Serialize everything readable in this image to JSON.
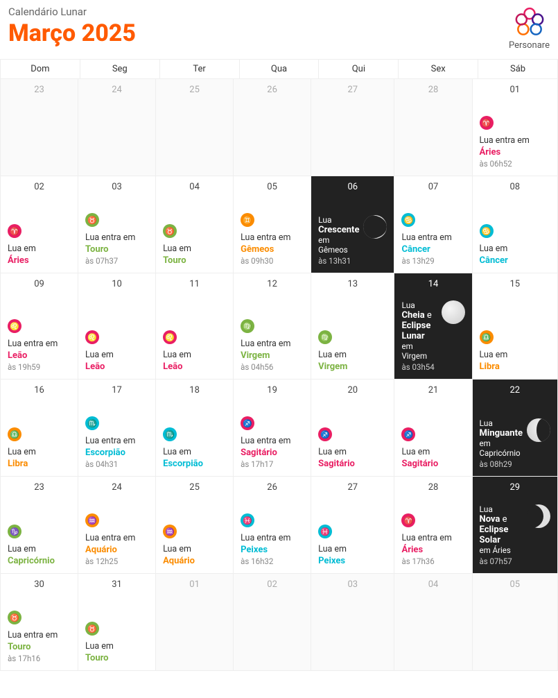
{
  "header": {
    "subtitle": "Calendário Lunar",
    "title": "Março 2025",
    "logo_text": "Personare"
  },
  "dow": [
    "Dom",
    "Seg",
    "Ter",
    "Qua",
    "Qui",
    "Sex",
    "Sáb"
  ],
  "colors": {
    "aries": "#e91e63",
    "touro": "#7cb342",
    "gemeos": "#fb8c00",
    "cancer": "#00bcd4",
    "leao": "#e91e63",
    "virgem": "#7cb342",
    "libra": "#fb8c00",
    "escorpiao": "#00bcd4",
    "sagitario": "#e91e63",
    "capricornio": "#7cb342",
    "aquario": "#fb8c00",
    "peixes": "#00bcd4",
    "accent": "#ff5a00"
  },
  "glyphs": {
    "aries": "♈",
    "touro": "♉",
    "gemeos": "♊",
    "cancer": "♋",
    "leao": "♌",
    "virgem": "♍",
    "libra": "♎",
    "escorpiao": "♏",
    "sagitario": "♐",
    "capricornio": "♑",
    "aquario": "♒",
    "peixes": "♓"
  },
  "cells": [
    {
      "day": "23",
      "muted": true
    },
    {
      "day": "24",
      "muted": true
    },
    {
      "day": "25",
      "muted": true
    },
    {
      "day": "26",
      "muted": true
    },
    {
      "day": "27",
      "muted": true
    },
    {
      "day": "28",
      "muted": true
    },
    {
      "day": "01",
      "sign_key": "aries",
      "line1": "Lua entra em",
      "sign": "Áries",
      "time": "às 06h52"
    },
    {
      "day": "02",
      "sign_key": "aries",
      "line1": "Lua em",
      "sign": "Áries"
    },
    {
      "day": "03",
      "sign_key": "touro",
      "line1": "Lua entra em",
      "sign": "Touro",
      "time": "às 07h37"
    },
    {
      "day": "04",
      "sign_key": "touro",
      "line1": "Lua em",
      "sign": "Touro"
    },
    {
      "day": "05",
      "sign_key": "gemeos",
      "line1": "Lua entra em",
      "sign": "Gêmeos",
      "time": "às 09h30"
    },
    {
      "day": "06",
      "dark": true,
      "phase": "crescent",
      "phase_title": "Lua",
      "phase_name": "Crescente",
      "phase_sign": "em Gêmeos",
      "time": "às 13h31"
    },
    {
      "day": "07",
      "sign_key": "cancer",
      "line1": "Lua entra em",
      "sign": "Câncer",
      "time": "às 13h29"
    },
    {
      "day": "08",
      "sign_key": "cancer",
      "line1": "Lua em",
      "sign": "Câncer"
    },
    {
      "day": "09",
      "sign_key": "leao",
      "line1": "Lua entra em",
      "sign": "Leão",
      "time": "às 19h59"
    },
    {
      "day": "10",
      "sign_key": "leao",
      "line1": "Lua em",
      "sign": "Leão"
    },
    {
      "day": "11",
      "sign_key": "leao",
      "line1": "Lua em",
      "sign": "Leão"
    },
    {
      "day": "12",
      "sign_key": "virgem",
      "line1": "Lua entra em",
      "sign": "Virgem",
      "time": "às 04h56"
    },
    {
      "day": "13",
      "sign_key": "virgem",
      "line1": "Lua em",
      "sign": "Virgem"
    },
    {
      "day": "14",
      "dark": true,
      "phase": "full",
      "phase_title": "Lua",
      "phase_name": "Cheia e Eclipse Lunar",
      "phase_sign": "em Virgem",
      "time": "às 03h54"
    },
    {
      "day": "15",
      "sign_key": "libra",
      "line1": "Lua em",
      "sign": "Libra"
    },
    {
      "day": "16",
      "sign_key": "libra",
      "line1": "Lua em",
      "sign": "Libra"
    },
    {
      "day": "17",
      "sign_key": "escorpiao",
      "line1": "Lua entra em",
      "sign": "Escorpião",
      "time": "às 04h31"
    },
    {
      "day": "18",
      "sign_key": "escorpiao",
      "line1": "Lua em",
      "sign": "Escorpião"
    },
    {
      "day": "19",
      "sign_key": "sagitario",
      "line1": "Lua entra em",
      "sign": "Sagitário",
      "time": "às 17h17"
    },
    {
      "day": "20",
      "sign_key": "sagitario",
      "line1": "Lua em",
      "sign": "Sagitário"
    },
    {
      "day": "21",
      "sign_key": "sagitario",
      "line1": "Lua em",
      "sign": "Sagitário"
    },
    {
      "day": "22",
      "dark": true,
      "phase": "waning",
      "phase_title": "Lua",
      "phase_name": "Minguante",
      "phase_sign": "em Capricórnio",
      "time": "às 08h29"
    },
    {
      "day": "23",
      "sign_key": "capricornio",
      "line1": "Lua em",
      "sign": "Capricórnio"
    },
    {
      "day": "24",
      "sign_key": "aquario",
      "line1": "Lua entra em",
      "sign": "Aquário",
      "time": "às 12h25"
    },
    {
      "day": "25",
      "sign_key": "aquario",
      "line1": "Lua em",
      "sign": "Aquário"
    },
    {
      "day": "26",
      "sign_key": "peixes",
      "line1": "Lua entra em",
      "sign": "Peixes",
      "time": "às 16h32"
    },
    {
      "day": "27",
      "sign_key": "peixes",
      "line1": "Lua em",
      "sign": "Peixes"
    },
    {
      "day": "28",
      "sign_key": "aries",
      "line1": "Lua entra em",
      "sign": "Áries",
      "time": "às 17h36"
    },
    {
      "day": "29",
      "dark": true,
      "phase": "new",
      "phase_title": "Lua",
      "phase_name": "Nova e Eclipse Solar",
      "phase_sign": "em Áries",
      "time": "às 07h57"
    },
    {
      "day": "30",
      "sign_key": "touro",
      "line1": "Lua entra em",
      "sign": "Touro",
      "time": "às 17h16"
    },
    {
      "day": "31",
      "sign_key": "touro",
      "line1": "Lua em",
      "sign": "Touro"
    },
    {
      "day": "01",
      "muted": true
    },
    {
      "day": "02",
      "muted": true
    },
    {
      "day": "03",
      "muted": true
    },
    {
      "day": "04",
      "muted": true
    },
    {
      "day": "05",
      "muted": true
    }
  ]
}
